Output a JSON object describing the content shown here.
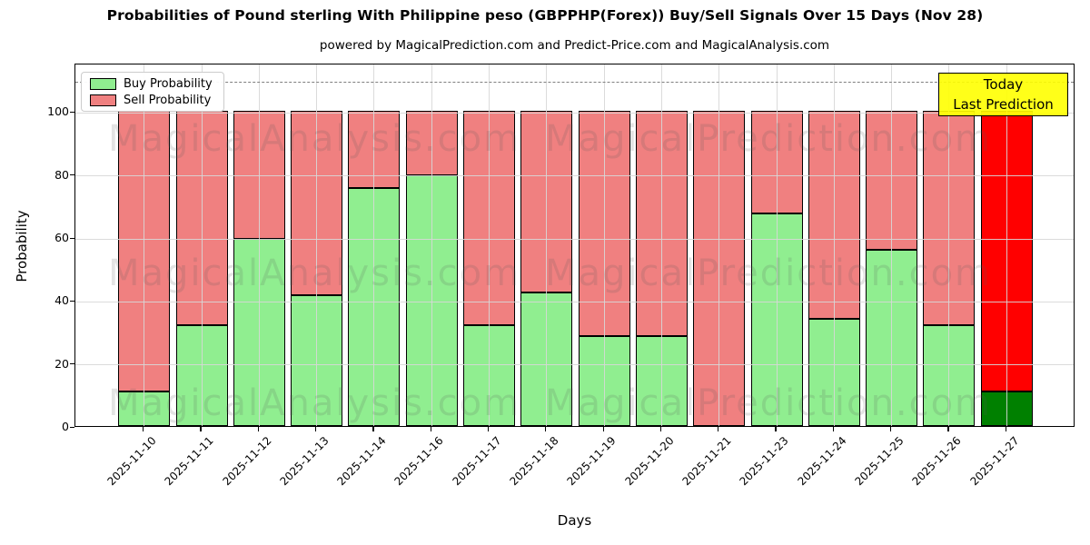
{
  "title": "Probabilities of Pound sterling With Philippine peso (GBPPHP(Forex)) Buy/Sell Signals Over 15 Days (Nov 28)",
  "subtitle": "powered by MagicalPrediction.com and Predict-Price.com and MagicalAnalysis.com",
  "legend": {
    "buy_label": "Buy Probability",
    "sell_label": "Sell Probability"
  },
  "annotation_box": {
    "line1": "Today",
    "line2": "Last Prediction"
  },
  "axes": {
    "x_label": "Days",
    "y_label": "Probability",
    "y_ticks": [
      0,
      20,
      40,
      60,
      80,
      100
    ],
    "ylim": [
      0,
      115.4
    ],
    "dashed_line_y": 110,
    "grid": "on"
  },
  "watermarks": {
    "left_text": "MagicalAnalysis.com",
    "right_text": "MagicalPrediction.com"
  },
  "colors": {
    "buy": "#90EE90",
    "sell": "#F08080",
    "today_buy": "#008000",
    "today_sell": "#FF0000",
    "annotation_bg": "#FFFF00",
    "bar_edge": "#000000",
    "dashed_line": "#7f7f7f"
  },
  "chart_data": {
    "type": "bar",
    "stacked": true,
    "title": "Probabilities of Pound sterling With Philippine peso (GBPPHP(Forex)) Buy/Sell Signals Over 15 Days (Nov 28)",
    "xlabel": "Days",
    "ylabel": "Probability",
    "ylim": [
      0,
      115.4
    ],
    "legend_position": "upper left",
    "categories": [
      "2025-11-10",
      "2025-11-11",
      "2025-11-12",
      "2025-11-13",
      "2025-11-14",
      "2025-11-16",
      "2025-11-17",
      "2025-11-18",
      "2025-11-19",
      "2025-11-20",
      "2025-11-21",
      "2025-11-23",
      "2025-11-24",
      "2025-11-25",
      "2025-11-26",
      "2025-11-27"
    ],
    "series": [
      {
        "name": "Buy Probability",
        "color": "#90EE90",
        "values": [
          11,
          32,
          59.5,
          41.5,
          75.5,
          79.5,
          32,
          42.5,
          28.5,
          28.5,
          0,
          67.5,
          34,
          56,
          32,
          11
        ]
      },
      {
        "name": "Sell Probability",
        "color": "#F08080",
        "values": [
          89,
          68,
          40.5,
          58.5,
          24.5,
          20.5,
          68,
          57.5,
          71.5,
          71.5,
          100,
          32.5,
          66,
          44,
          68,
          89
        ]
      }
    ],
    "today_bar": {
      "category": "2025-11-27",
      "buy": 11,
      "sell": 89,
      "buy_color": "#008000",
      "sell_color": "#FF0000",
      "annotation": "Today Last Prediction"
    }
  }
}
